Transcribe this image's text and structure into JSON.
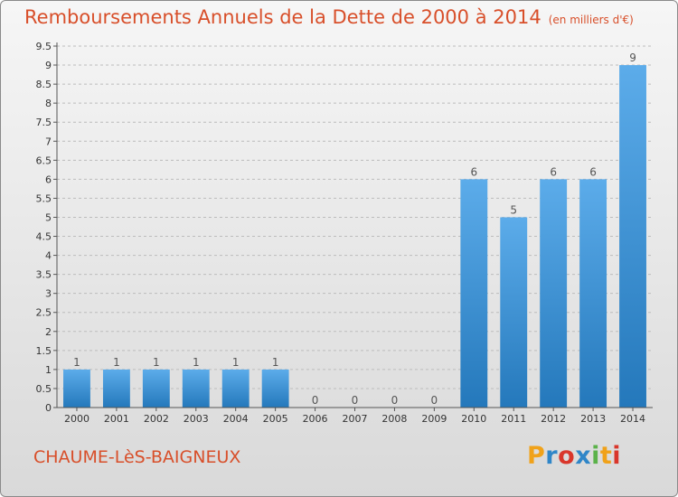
{
  "title": "Remboursements Annuels de la Dette de 2000 à 2014",
  "unit": "(en milliers d'€)",
  "commune": "CHAUME-LèS-BAIGNEUX",
  "brand": {
    "letters": [
      "P",
      "r",
      "o",
      "x",
      "i",
      "t",
      "i"
    ],
    "colors": [
      "#f0a21a",
      "#2f86c8",
      "#d9362b",
      "#2f86c8",
      "#5bb24a",
      "#f0a21a",
      "#d9362b"
    ]
  },
  "colors": {
    "bar_top": "#5cacea",
    "bar_bottom": "#2478bb",
    "title": "#d84f2a",
    "axis": "#555555",
    "grid": "#bcbcbc"
  },
  "chart_data": {
    "type": "bar",
    "title": "Remboursements Annuels de la Dette de 2000 à 2014",
    "xlabel": "",
    "ylabel": "",
    "categories": [
      "2000",
      "2001",
      "2002",
      "2003",
      "2004",
      "2005",
      "2006",
      "2007",
      "2008",
      "2009",
      "2010",
      "2011",
      "2012",
      "2013",
      "2014"
    ],
    "values": [
      1,
      1,
      1,
      1,
      1,
      1,
      0,
      0,
      0,
      0,
      6,
      5,
      6,
      6,
      9
    ],
    "data_labels": [
      "1",
      "1",
      "1",
      "1",
      "1",
      "1",
      "0",
      "0",
      "0",
      "0",
      "6",
      "5",
      "6",
      "6",
      "9"
    ],
    "ylim": [
      0,
      9.5
    ],
    "yticks": [
      "0",
      "0.5",
      "1",
      "1.5",
      "2",
      "2.5",
      "3",
      "3.5",
      "4",
      "4.5",
      "5",
      "5.5",
      "6",
      "6.5",
      "7",
      "7.5",
      "8",
      "8.5",
      "9",
      "9.5"
    ],
    "grid": "horizontal dashed"
  }
}
